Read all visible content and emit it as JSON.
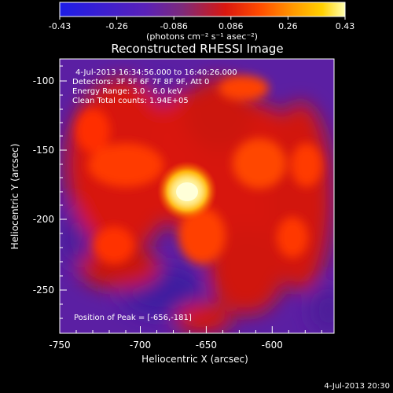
{
  "colorbar": {
    "tick_labels": [
      "-0.43",
      "-0.26",
      "-0.086",
      "0.086",
      "0.26",
      "0.43"
    ],
    "units_label": "(photons cm⁻² s⁻¹ asec⁻²)",
    "stops": [
      "#1d1de8",
      "#5a21b8",
      "#7e2a7a",
      "#d9170f",
      "#ff4b00",
      "#ff9a00",
      "#ffd000",
      "#ffffb0"
    ]
  },
  "plot": {
    "title": "Reconstructed RHESSI Image",
    "x_label": "Heliocentric X (arcsec)",
    "y_label": "Heliocentric Y (arcsec)",
    "x_ticks": [
      "-750",
      "-700",
      "-650",
      "-600"
    ],
    "y_ticks": [
      "-100",
      "-150",
      "-200",
      "-250"
    ],
    "info_lines": [
      "4-Jul-2013 16:34:56.000 to 16:40:26.000",
      "Detectors: 3F 5F 6F 7F 8F 9F, Att 0",
      "Energy Range: 3.0 - 6.0 keV",
      "Clean     Total counts: 1.94E+05"
    ],
    "peak_text": "Position of Peak = [-656,-181]",
    "footer_date": "4-Jul-2013 20:30"
  }
}
